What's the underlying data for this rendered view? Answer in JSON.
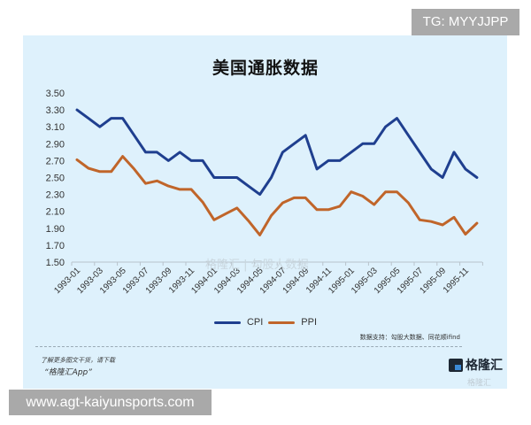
{
  "badges": {
    "tg": "TG: MYYJJPP",
    "url": "www.agt-kaiyunsports.com"
  },
  "chart": {
    "title": "美国通胀数据",
    "watermark": "格隆汇 | 勾股大数据",
    "source": "数据支持：勾股大数据、同花顺ifind",
    "promo_line1": "了解更多图文干货，请下载",
    "promo_line2": "“格隆汇App”",
    "logo_text": "格隆汇",
    "logo_small": "格隆汇"
  },
  "legend": [
    {
      "label": "CPI",
      "color": "#1f3f8f"
    },
    {
      "label": "PPI",
      "color": "#c0652a"
    }
  ],
  "chart_data": {
    "type": "line",
    "title": "美国通胀数据",
    "xlabel": "",
    "ylabel": "",
    "ylim": [
      1.5,
      3.5
    ],
    "yticks": [
      1.5,
      1.7,
      1.9,
      2.1,
      2.3,
      2.5,
      2.7,
      2.9,
      3.1,
      3.3,
      3.5
    ],
    "xtick_labels": [
      "1993-01",
      "1993-03",
      "1993-05",
      "1993-07",
      "1993-09",
      "1993-11",
      "1994-01",
      "1994-03",
      "1994-05",
      "1994-07",
      "1994-09",
      "1994-11",
      "1995-01",
      "1995-03",
      "1995-05",
      "1995-07",
      "1995-09",
      "1995-11"
    ],
    "grid": false,
    "legend_position": "bottom",
    "x": [
      "1993-01",
      "1993-02",
      "1993-03",
      "1993-04",
      "1993-05",
      "1993-06",
      "1993-07",
      "1993-08",
      "1993-09",
      "1993-10",
      "1993-11",
      "1993-12",
      "1994-01",
      "1994-02",
      "1994-03",
      "1994-04",
      "1994-05",
      "1994-06",
      "1994-07",
      "1994-08",
      "1994-09",
      "1994-10",
      "1994-11",
      "1994-12",
      "1995-01",
      "1995-02",
      "1995-03",
      "1995-04",
      "1995-05",
      "1995-06",
      "1995-07",
      "1995-08",
      "1995-09",
      "1995-10",
      "1995-11",
      "1995-12"
    ],
    "series": [
      {
        "name": "CPI",
        "color": "#1f3f8f",
        "values": [
          3.3,
          3.2,
          3.1,
          3.2,
          3.2,
          3.0,
          2.8,
          2.8,
          2.7,
          2.8,
          2.7,
          2.7,
          2.5,
          2.5,
          2.5,
          2.4,
          2.3,
          2.5,
          2.8,
          2.9,
          3.0,
          2.6,
          2.7,
          2.7,
          2.8,
          2.9,
          2.9,
          3.1,
          3.2,
          3.0,
          2.8,
          2.6,
          2.5,
          2.8,
          2.6,
          2.5
        ]
      },
      {
        "name": "PPI",
        "color": "#c0652a",
        "values": [
          2.71,
          2.61,
          2.57,
          2.57,
          2.75,
          2.6,
          2.43,
          2.46,
          2.4,
          2.36,
          2.36,
          2.21,
          2.0,
          2.07,
          2.14,
          1.99,
          1.82,
          2.05,
          2.2,
          2.26,
          2.26,
          2.12,
          2.12,
          2.16,
          2.33,
          2.28,
          2.18,
          2.33,
          2.33,
          2.2,
          2.0,
          1.98,
          1.94,
          2.03,
          1.83,
          1.96
        ]
      }
    ]
  }
}
